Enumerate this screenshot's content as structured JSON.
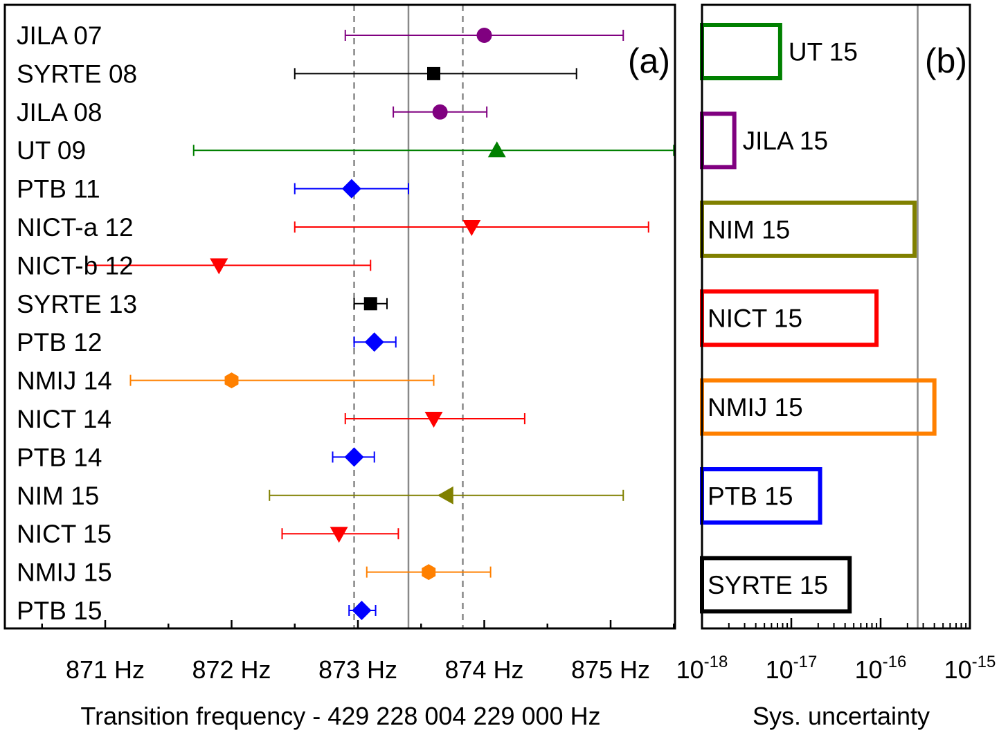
{
  "chart_data": [
    {
      "panel": "a",
      "type": "scatter",
      "panel_label": "(a)",
      "xlabel": "Transition frequency - 429 228 004 229 000 Hz",
      "xlim": [
        870.45,
        875.5
      ],
      "xticks": [
        871,
        872,
        873,
        874,
        875
      ],
      "xtick_labels": [
        "871 Hz",
        "872 Hz",
        "873 Hz",
        "874 Hz",
        "875 Hz"
      ],
      "reference_lines": {
        "solid": 873.4,
        "dashed": [
          872.97,
          873.83
        ]
      },
      "points": [
        {
          "label": "JILA 07",
          "value": 874.0,
          "lo": 872.9,
          "hi": 875.1,
          "marker": "circle",
          "color": "#800080"
        },
        {
          "label": "SYRTE 08",
          "value": 873.6,
          "lo": 872.5,
          "hi": 874.73,
          "marker": "square",
          "color": "#000000"
        },
        {
          "label": "JILA 08",
          "value": 873.65,
          "lo": 873.28,
          "hi": 874.02,
          "marker": "circle",
          "color": "#800080"
        },
        {
          "label": "UT 09",
          "value": 874.1,
          "lo": 871.7,
          "hi": 875.5,
          "marker": "triangle-up",
          "color": "#008000"
        },
        {
          "label": "PTB 11",
          "value": 872.95,
          "lo": 872.5,
          "hi": 873.4,
          "marker": "diamond",
          "color": "#0000ff"
        },
        {
          "label": "NICT-a 12",
          "value": 873.9,
          "lo": 872.5,
          "hi": 875.3,
          "marker": "triangle-down",
          "color": "#ff0000"
        },
        {
          "label": "NICT-b 12",
          "value": 871.9,
          "lo": 870.85,
          "hi": 873.1,
          "marker": "triangle-down",
          "color": "#ff0000"
        },
        {
          "label": "SYRTE 13",
          "value": 873.1,
          "lo": 872.97,
          "hi": 873.23,
          "marker": "square",
          "color": "#000000"
        },
        {
          "label": "PTB 12",
          "value": 873.13,
          "lo": 872.97,
          "hi": 873.3,
          "marker": "diamond",
          "color": "#0000ff"
        },
        {
          "label": "NMIJ 14",
          "value": 872.0,
          "lo": 871.2,
          "hi": 873.6,
          "marker": "hexagon",
          "color": "#ff8000"
        },
        {
          "label": "NICT 14",
          "value": 873.6,
          "lo": 872.9,
          "hi": 874.32,
          "marker": "triangle-down",
          "color": "#ff0000"
        },
        {
          "label": "PTB 14",
          "value": 872.97,
          "lo": 872.8,
          "hi": 873.13,
          "marker": "diamond",
          "color": "#0000ff"
        },
        {
          "label": "NIM 15",
          "value": 873.7,
          "lo": 872.3,
          "hi": 875.1,
          "marker": "triangle-left",
          "color": "#808000"
        },
        {
          "label": "NICT 15",
          "value": 872.85,
          "lo": 872.4,
          "hi": 873.32,
          "marker": "triangle-down",
          "color": "#ff0000"
        },
        {
          "label": "NMIJ 15",
          "value": 873.56,
          "lo": 873.07,
          "hi": 874.05,
          "marker": "hexagon",
          "color": "#ff8000"
        },
        {
          "label": "PTB 15",
          "value": 873.03,
          "lo": 872.93,
          "hi": 873.14,
          "marker": "diamond",
          "color": "#0000ff"
        }
      ]
    },
    {
      "panel": "b",
      "type": "bar",
      "orientation": "horizontal",
      "panel_label": "(b)",
      "xlabel": "Sys. uncertainty",
      "xscale": "log",
      "xlim": [
        1e-18,
        1e-15
      ],
      "xtick_labels": [
        {
          "base": "10",
          "exp": "-18"
        },
        {
          "base": "10",
          "exp": "-17"
        },
        {
          "base": "10",
          "exp": "-16"
        },
        {
          "base": "10",
          "exp": "-15"
        }
      ],
      "reference_line": 2.6e-16,
      "categories": [
        "UT 15",
        "JILA 15",
        "NIM 15",
        "NICT 15",
        "NMIJ 15",
        "PTB 15",
        "SYRTE 15"
      ],
      "values": [
        7.5e-18,
        2.3e-18,
        2.4e-16,
        9e-17,
        4e-16,
        2.1e-17,
        4.5e-17
      ],
      "colors": [
        "#008000",
        "#800080",
        "#808000",
        "#ff0000",
        "#ff8000",
        "#0000ff",
        "#000000"
      ]
    }
  ]
}
